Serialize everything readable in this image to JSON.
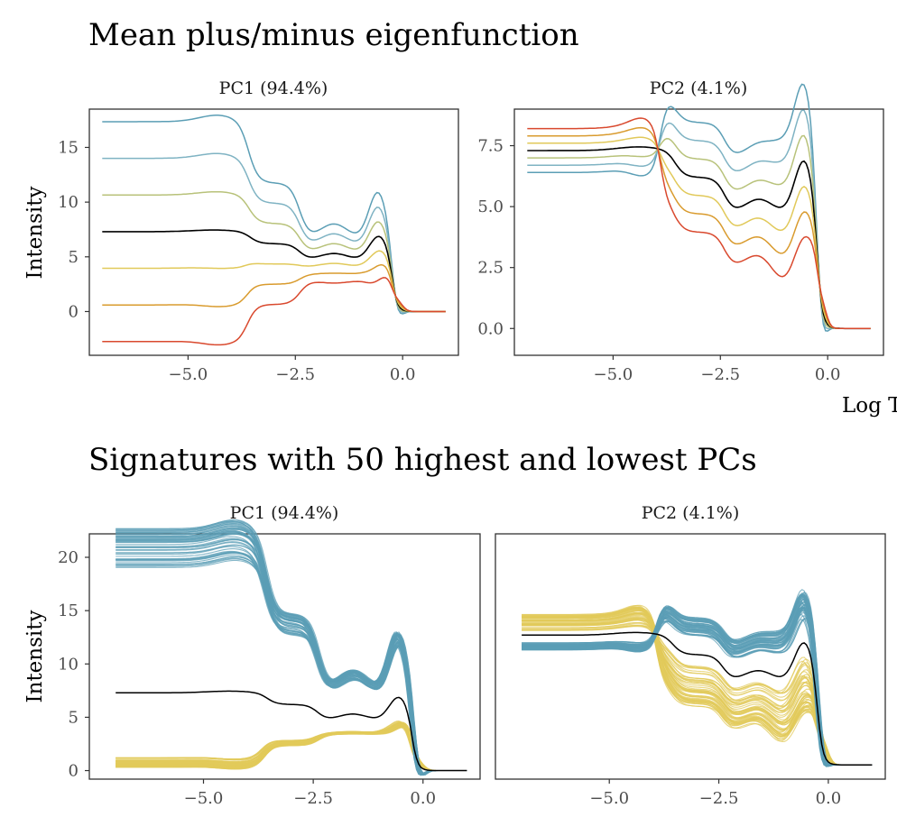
{
  "sections": [
    {
      "title": "Mean plus/minus eigenfunction"
    },
    {
      "title": "Signatures with 50 highest and lowest PCs"
    }
  ],
  "axis_text": {
    "ylabel": "Intensity",
    "xlabel": "Log T"
  },
  "colors": {
    "mean": "#000000",
    "bundle_high": "#5b9eb5",
    "bundle_low": "#e1c95a",
    "frame": "#333333",
    "tick_text": "#4d4d4d"
  },
  "chart_data": [
    {
      "type": "line",
      "panel": "PC1 (94.4%)",
      "section": 0,
      "xlim": [
        -7.3,
        1.3
      ],
      "ylim": [
        -4,
        18.5
      ],
      "xticks": [
        -5.0,
        -2.5,
        0.0
      ],
      "xtick_labels": [
        "−5.0",
        "−2.5",
        "0.0"
      ],
      "yticks": [
        0,
        5,
        10,
        15
      ],
      "ytick_labels": [
        "0",
        "5",
        "10",
        "15"
      ],
      "xlabel": "",
      "ylabel": "Intensity",
      "series": [
        {
          "color": "#5b9eb5",
          "multiplier": 3
        },
        {
          "color": "#7fb3c3",
          "multiplier": 2
        },
        {
          "color": "#b8c27a",
          "multiplier": 1
        },
        {
          "color": "#000000",
          "multiplier": 0
        },
        {
          "color": "#e1c95a",
          "multiplier": -1
        },
        {
          "color": "#d99b2e",
          "multiplier": -2
        },
        {
          "color": "#d9492e",
          "multiplier": -3
        }
      ]
    },
    {
      "type": "line",
      "panel": "PC2 (4.1%)",
      "section": 0,
      "xlim": [
        -7.3,
        1.3
      ],
      "ylim": [
        -1.1,
        9
      ],
      "xticks": [
        -5.0,
        -2.5,
        0.0
      ],
      "xtick_labels": [
        "−5.0",
        "−2.5",
        "0.0"
      ],
      "yticks": [
        0,
        2.5,
        5,
        7.5
      ],
      "ytick_labels": [
        "0.0",
        "2.5",
        "5.0",
        "7.5"
      ],
      "xlabel": "Log T",
      "ylabel": "",
      "series": [
        {
          "color": "#5b9eb5",
          "multiplier": 3
        },
        {
          "color": "#7fb3c3",
          "multiplier": 2
        },
        {
          "color": "#b8c27a",
          "multiplier": 1
        },
        {
          "color": "#000000",
          "multiplier": 0
        },
        {
          "color": "#e1c95a",
          "multiplier": -1
        },
        {
          "color": "#d99b2e",
          "multiplier": -2
        },
        {
          "color": "#d9492e",
          "multiplier": -3
        }
      ]
    },
    {
      "type": "line",
      "panel": "PC1 (94.4%)",
      "section": 1,
      "xlim": [
        -7.6,
        1.3
      ],
      "ylim": [
        -0.8,
        22.2
      ],
      "xticks": [
        -5.0,
        -2.5,
        0.0
      ],
      "xtick_labels": [
        "−5.0",
        "−2.5",
        "0.0"
      ],
      "yticks": [
        0,
        5,
        10,
        15,
        20
      ],
      "ytick_labels": [
        "0",
        "5",
        "10",
        "15",
        "20"
      ],
      "xlabel": "",
      "ylabel": "Intensity",
      "bundles": [
        {
          "name": "",
          "count": 50,
          "color": "#5b9eb5",
          "score_range": [
            3.5,
            4.6
          ]
        },
        {
          "name": "",
          "count": 50,
          "color": "#e1c95a",
          "score_range": [
            -2.1,
            -1.8
          ]
        }
      ],
      "mean_color": "#000000"
    },
    {
      "type": "line",
      "panel": "PC2 (4.1%)",
      "section": 1,
      "xlim": [
        -7.6,
        1.3
      ],
      "ylim": [
        -0.8,
        13
      ],
      "xticks": [
        -5.0,
        -2.5,
        0.0
      ],
      "xtick_labels": [
        "−5.0",
        "−2.5",
        "0.0"
      ],
      "yticks": [],
      "ytick_labels": [],
      "xlabel": "",
      "ylabel": "",
      "bundles": [
        {
          "name": "",
          "count": 50,
          "color": "#5b9eb5",
          "score_range": [
            1.3,
            2.8
          ]
        },
        {
          "name": "",
          "count": 50,
          "color": "#e1c95a",
          "score_range": [
            -3.9,
            -0.8
          ]
        }
      ],
      "mean_color": "#000000"
    }
  ]
}
